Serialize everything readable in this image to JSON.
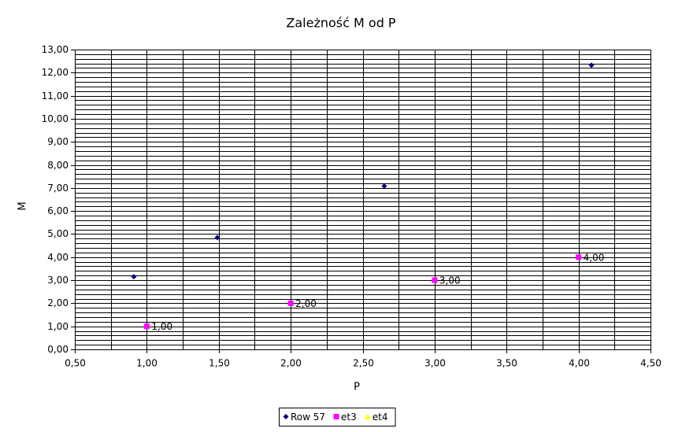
{
  "chart_data": {
    "type": "scatter",
    "title": "Zależność M od P",
    "x_label": "P",
    "y_label": "M",
    "xlim": [
      0.5,
      4.5
    ],
    "ylim": [
      0,
      13
    ],
    "xticks": [
      {
        "value": 0.5,
        "label": "0,50"
      },
      {
        "value": 1,
        "label": "1,00"
      },
      {
        "value": 1.5,
        "label": "1,50"
      },
      {
        "value": 2,
        "label": "2,00"
      },
      {
        "value": 2.5,
        "label": "2,50"
      },
      {
        "value": 3,
        "label": "3,00"
      },
      {
        "value": 3.5,
        "label": "3,50"
      },
      {
        "value": 4,
        "label": "4,00"
      },
      {
        "value": 4.5,
        "label": "4,50"
      }
    ],
    "yticks": [
      {
        "value": 0,
        "label": "0,00"
      },
      {
        "value": 1,
        "label": "1,00"
      },
      {
        "value": 2,
        "label": "2,00"
      },
      {
        "value": 3,
        "label": "3,00"
      },
      {
        "value": 4,
        "label": "4,00"
      },
      {
        "value": 5,
        "label": "5,00"
      },
      {
        "value": 6,
        "label": "6,00"
      },
      {
        "value": 7,
        "label": "7,00"
      },
      {
        "value": 8,
        "label": "8,00"
      },
      {
        "value": 9,
        "label": "9,00"
      },
      {
        "value": 10,
        "label": "10,00"
      },
      {
        "value": 11,
        "label": "11,00"
      },
      {
        "value": 12,
        "label": "12,00"
      },
      {
        "value": 13,
        "label": "13,00"
      }
    ],
    "xminorticks": [
      0.75,
      1.25,
      1.75,
      2.25,
      2.75,
      3.25,
      3.75,
      4.25
    ],
    "yminorticks": [
      0.2,
      0.4,
      0.6,
      0.8,
      1.2,
      1.4,
      1.6,
      1.8,
      2.2,
      2.4,
      2.6,
      2.8,
      3.2,
      3.4,
      3.6,
      3.8,
      4.2,
      4.4,
      4.6,
      4.8,
      5.2,
      5.4,
      5.6,
      5.8,
      6.2,
      6.4,
      6.6,
      6.8,
      7.2,
      7.4,
      7.6,
      7.8,
      8.2,
      8.4,
      8.6,
      8.8,
      9.2,
      9.4,
      9.6,
      9.8,
      10.2,
      10.4,
      10.6,
      10.8,
      11.2,
      11.4,
      11.6,
      11.8,
      12.2,
      12.4,
      12.6,
      12.8
    ],
    "grid": true,
    "legend": "bottom",
    "series": [
      {
        "name": "Row 57",
        "color": "#000080",
        "marker": "diamond",
        "x": [
          0.91,
          1.49,
          2.65,
          4.09
        ],
        "values": [
          3.15,
          4.85,
          7.08,
          12.32
        ]
      },
      {
        "name": "et3",
        "color": "#ff00ff",
        "marker": "square",
        "x": [
          1,
          2,
          3,
          4
        ],
        "values": [
          1,
          2,
          3,
          4
        ],
        "value_labels": [
          "1,00",
          "2,00",
          "3,00",
          "4,00"
        ]
      },
      {
        "name": "et4",
        "color": "#ffff00",
        "marker": "triangle",
        "x": [],
        "values": []
      }
    ]
  }
}
